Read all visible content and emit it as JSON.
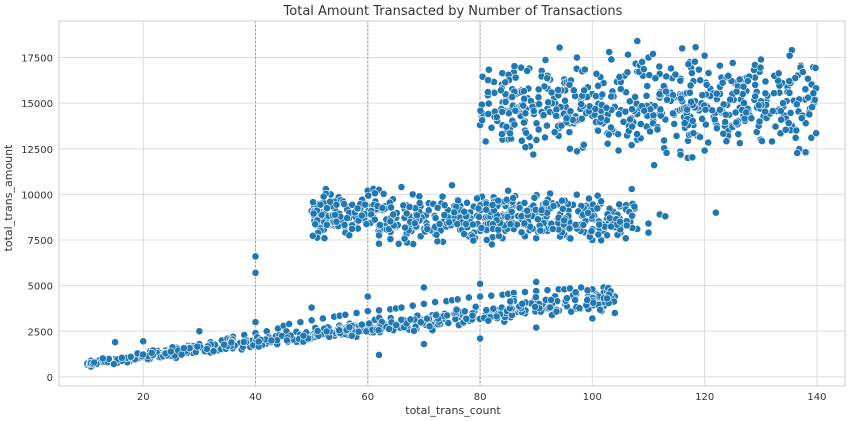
{
  "chart_data": {
    "type": "scatter",
    "title": "Total Amount Transacted by Number of Transactions",
    "xlabel": "total_trans_count",
    "ylabel": "total_trans_amount",
    "xlim": [
      5,
      145
    ],
    "ylim": [
      -500,
      19500
    ],
    "x_ticks": [
      20,
      40,
      60,
      80,
      100,
      120,
      140
    ],
    "y_ticks": [
      0,
      2500,
      5000,
      7500,
      10000,
      12500,
      15000,
      17500
    ],
    "x_tick_labels": [
      "20",
      "40",
      "60",
      "80",
      "100",
      "120",
      "140"
    ],
    "y_tick_labels": [
      "0",
      "2500",
      "5000",
      "7500",
      "10000",
      "12500",
      "15000",
      "17500"
    ],
    "reference_lines_x": [
      40,
      60,
      80
    ],
    "grid": true,
    "colors": {
      "points": "#1f77b4",
      "point_edge": "#ffffff"
    },
    "clusters": [
      {
        "x_range": [
          10,
          104
        ],
        "y_at_x_start": [
          500,
          1000
        ],
        "y_at_x_end": [
          3500,
          5300
        ]
      },
      {
        "x_range": [
          50,
          108
        ],
        "y_range": [
          7000,
          10500
        ]
      },
      {
        "x_range": [
          80,
          140
        ],
        "y_range": [
          11500,
          18500
        ]
      }
    ],
    "series": [
      {
        "points": [
          [
            10,
            650
          ],
          [
            11,
            700
          ],
          [
            12,
            800
          ],
          [
            13,
            850
          ],
          [
            14,
            900
          ],
          [
            15,
            950
          ],
          [
            15,
            1900
          ],
          [
            16,
            1000
          ],
          [
            17,
            1050
          ],
          [
            18,
            1100
          ],
          [
            19,
            1150
          ],
          [
            20,
            1250
          ],
          [
            20,
            1950
          ],
          [
            22,
            1350
          ],
          [
            24,
            1450
          ],
          [
            25,
            1500
          ],
          [
            26,
            1600
          ],
          [
            28,
            1700
          ],
          [
            30,
            1800
          ],
          [
            30,
            2500
          ],
          [
            32,
            1900
          ],
          [
            34,
            2000
          ],
          [
            35,
            2100
          ],
          [
            36,
            2200
          ],
          [
            38,
            2300
          ],
          [
            40,
            2400
          ],
          [
            40,
            3000
          ],
          [
            42,
            2500
          ],
          [
            44,
            2650
          ],
          [
            45,
            2800
          ],
          [
            46,
            2900
          ],
          [
            48,
            3000
          ],
          [
            50,
            3100
          ],
          [
            50,
            3800
          ],
          [
            52,
            3200
          ],
          [
            54,
            3300
          ],
          [
            55,
            3350
          ],
          [
            56,
            3400
          ],
          [
            58,
            3500
          ],
          [
            60,
            3600
          ],
          [
            60,
            4400
          ],
          [
            62,
            3650
          ],
          [
            64,
            3700
          ],
          [
            65,
            3750
          ],
          [
            66,
            3800
          ],
          [
            68,
            3900
          ],
          [
            70,
            4000
          ],
          [
            70,
            4900
          ],
          [
            72,
            4100
          ],
          [
            74,
            4150
          ],
          [
            75,
            4200
          ],
          [
            76,
            4250
          ],
          [
            78,
            4350
          ],
          [
            80,
            4400
          ],
          [
            80,
            5100
          ],
          [
            82,
            4450
          ],
          [
            84,
            4500
          ],
          [
            85,
            4550
          ],
          [
            86,
            4600
          ],
          [
            88,
            4650
          ],
          [
            90,
            4700
          ],
          [
            90,
            5200
          ],
          [
            92,
            4750
          ],
          [
            94,
            4800
          ],
          [
            95,
            4800
          ],
          [
            96,
            4850
          ],
          [
            98,
            4900
          ],
          [
            100,
            4800
          ],
          [
            102,
            4900
          ],
          [
            104,
            4400
          ],
          [
            40,
            6600
          ],
          [
            40,
            5700
          ],
          [
            62,
            1200
          ],
          [
            70,
            1800
          ],
          [
            80,
            2100
          ],
          [
            90,
            2700
          ],
          [
            100,
            3200
          ],
          [
            104,
            3500
          ],
          [
            50,
            9100
          ],
          [
            51,
            9150
          ],
          [
            54,
            8300
          ],
          [
            56,
            7900
          ],
          [
            58,
            8500
          ],
          [
            60,
            10200
          ],
          [
            61,
            10300
          ],
          [
            62,
            10250
          ],
          [
            64,
            9400
          ],
          [
            66,
            10400
          ],
          [
            68,
            10000
          ],
          [
            70,
            8100
          ],
          [
            72,
            7800
          ],
          [
            74,
            8600
          ],
          [
            75,
            10500
          ],
          [
            76,
            9700
          ],
          [
            78,
            7700
          ],
          [
            80,
            8000
          ],
          [
            82,
            8300
          ],
          [
            84,
            7600
          ],
          [
            85,
            10200
          ],
          [
            86,
            8100
          ],
          [
            88,
            7700
          ],
          [
            90,
            7600
          ],
          [
            92,
            8000
          ],
          [
            94,
            8300
          ],
          [
            95,
            7800
          ],
          [
            96,
            8400
          ],
          [
            98,
            8200
          ],
          [
            100,
            8100
          ],
          [
            100,
            9300
          ],
          [
            102,
            8000
          ],
          [
            104,
            8200
          ],
          [
            105,
            7900
          ],
          [
            106,
            8300
          ],
          [
            108,
            8100
          ],
          [
            110,
            8400
          ],
          [
            112,
            8900
          ],
          [
            113,
            8800
          ],
          [
            122,
            9000
          ],
          [
            62,
            7300
          ],
          [
            65,
            8900
          ],
          [
            70,
            8700
          ],
          [
            80,
            9000
          ],
          [
            90,
            8900
          ],
          [
            100,
            7500
          ],
          [
            105,
            9400
          ],
          [
            110,
            7900
          ],
          [
            80,
            13800
          ],
          [
            81,
            12900
          ],
          [
            82,
            14400
          ],
          [
            84,
            13000
          ],
          [
            85,
            15400
          ],
          [
            86,
            16700
          ],
          [
            88,
            14000
          ],
          [
            90,
            14900
          ],
          [
            92,
            15800
          ],
          [
            94,
            13200
          ],
          [
            95,
            16300
          ],
          [
            96,
            12500
          ],
          [
            98,
            15200
          ],
          [
            100,
            14300
          ],
          [
            102,
            16100
          ],
          [
            103,
            17800
          ],
          [
            104,
            13400
          ],
          [
            106,
            15600
          ],
          [
            107,
            12700
          ],
          [
            108,
            18400
          ],
          [
            108,
            14400
          ],
          [
            109,
            16500
          ],
          [
            110,
            13600
          ],
          [
            110,
            17500
          ],
          [
            111,
            11600
          ],
          [
            112,
            15300
          ],
          [
            113,
            14100
          ],
          [
            114,
            16900
          ],
          [
            115,
            13200
          ],
          [
            116,
            18000
          ],
          [
            116,
            15100
          ],
          [
            117,
            12000
          ],
          [
            118,
            16200
          ],
          [
            119,
            14600
          ],
          [
            120,
            17600
          ],
          [
            120,
            12400
          ],
          [
            121,
            15800
          ],
          [
            122,
            13900
          ],
          [
            123,
            16400
          ],
          [
            124,
            14900
          ],
          [
            125,
            17200
          ],
          [
            126,
            13300
          ],
          [
            127,
            15600
          ],
          [
            128,
            14200
          ],
          [
            129,
            16000
          ],
          [
            130,
            17400
          ],
          [
            130,
            13000
          ],
          [
            131,
            15100
          ],
          [
            132,
            12900
          ],
          [
            134,
            14800
          ],
          [
            138,
            13900
          ],
          [
            139,
            13100
          ],
          [
            88,
            13500
          ],
          [
            92,
            14700
          ],
          [
            96,
            13900
          ],
          [
            100,
            15500
          ],
          [
            104,
            14800
          ],
          [
            108,
            13000
          ],
          [
            112,
            16600
          ],
          [
            118,
            13800
          ]
        ]
      }
    ]
  }
}
